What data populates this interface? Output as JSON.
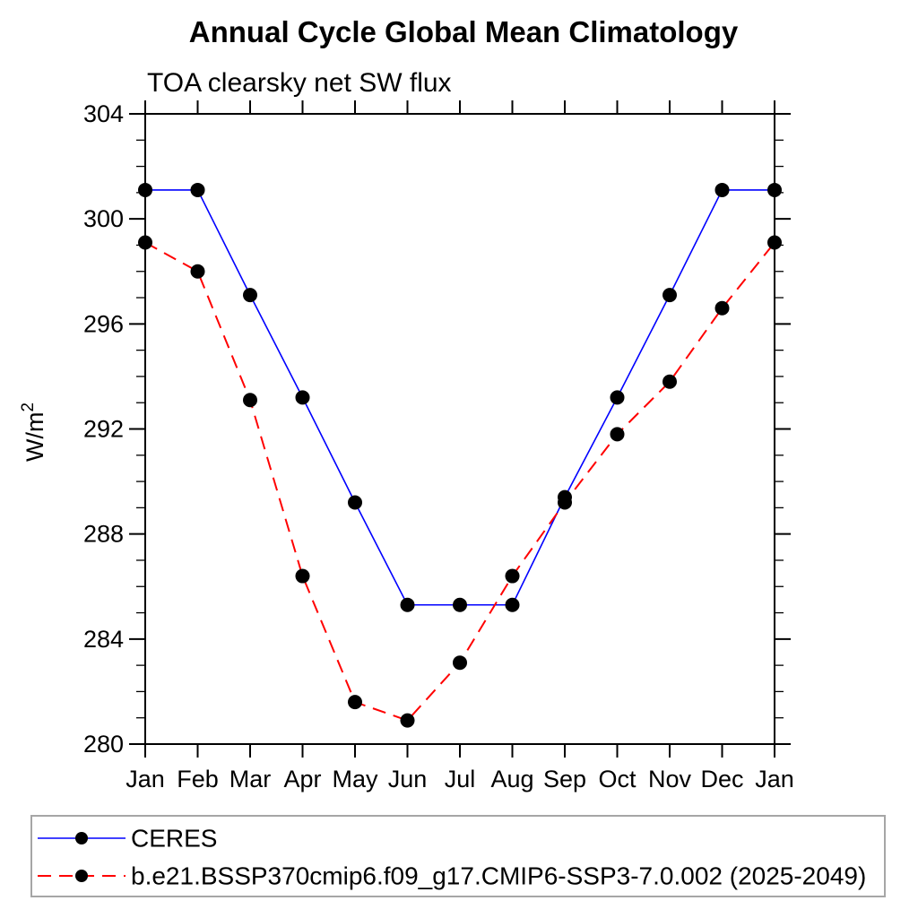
{
  "chart_data": {
    "type": "line",
    "title": "Annual Cycle Global Mean Climatology",
    "subtitle": "TOA clearsky net SW flux",
    "ylabel_main": "W/m",
    "ylabel_sup": "2",
    "categories": [
      "Jan",
      "Feb",
      "Mar",
      "Apr",
      "May",
      "Jun",
      "Jul",
      "Aug",
      "Sep",
      "Oct",
      "Nov",
      "Dec",
      "Jan"
    ],
    "ylim": [
      280,
      304
    ],
    "y_major_ticks": [
      280,
      284,
      288,
      292,
      296,
      300,
      304
    ],
    "y_minor_step": 1,
    "grid": false,
    "legend_position": "bottom",
    "frame_color": "#000000",
    "legend_border_color": "#a6a6a6",
    "series": [
      {
        "name": "CERES",
        "line_color": "#0000ff",
        "line_style": "solid",
        "marker": "filled-circle",
        "marker_color": "#000000",
        "values": [
          301.1,
          301.1,
          297.1,
          293.2,
          289.2,
          285.3,
          285.3,
          285.3,
          289.4,
          293.2,
          297.1,
          301.1,
          301.1
        ]
      },
      {
        "name": "b.e21.BSSP370cmip6.f09_g17.CMIP6-SSP3-7.0.002 (2025-2049)",
        "line_color": "#ff0000",
        "line_style": "dashed",
        "marker": "filled-circle",
        "marker_color": "#000000",
        "values": [
          299.1,
          298.0,
          293.1,
          286.4,
          281.6,
          280.9,
          283.1,
          286.4,
          289.2,
          291.8,
          293.8,
          296.6,
          299.1
        ]
      }
    ]
  }
}
